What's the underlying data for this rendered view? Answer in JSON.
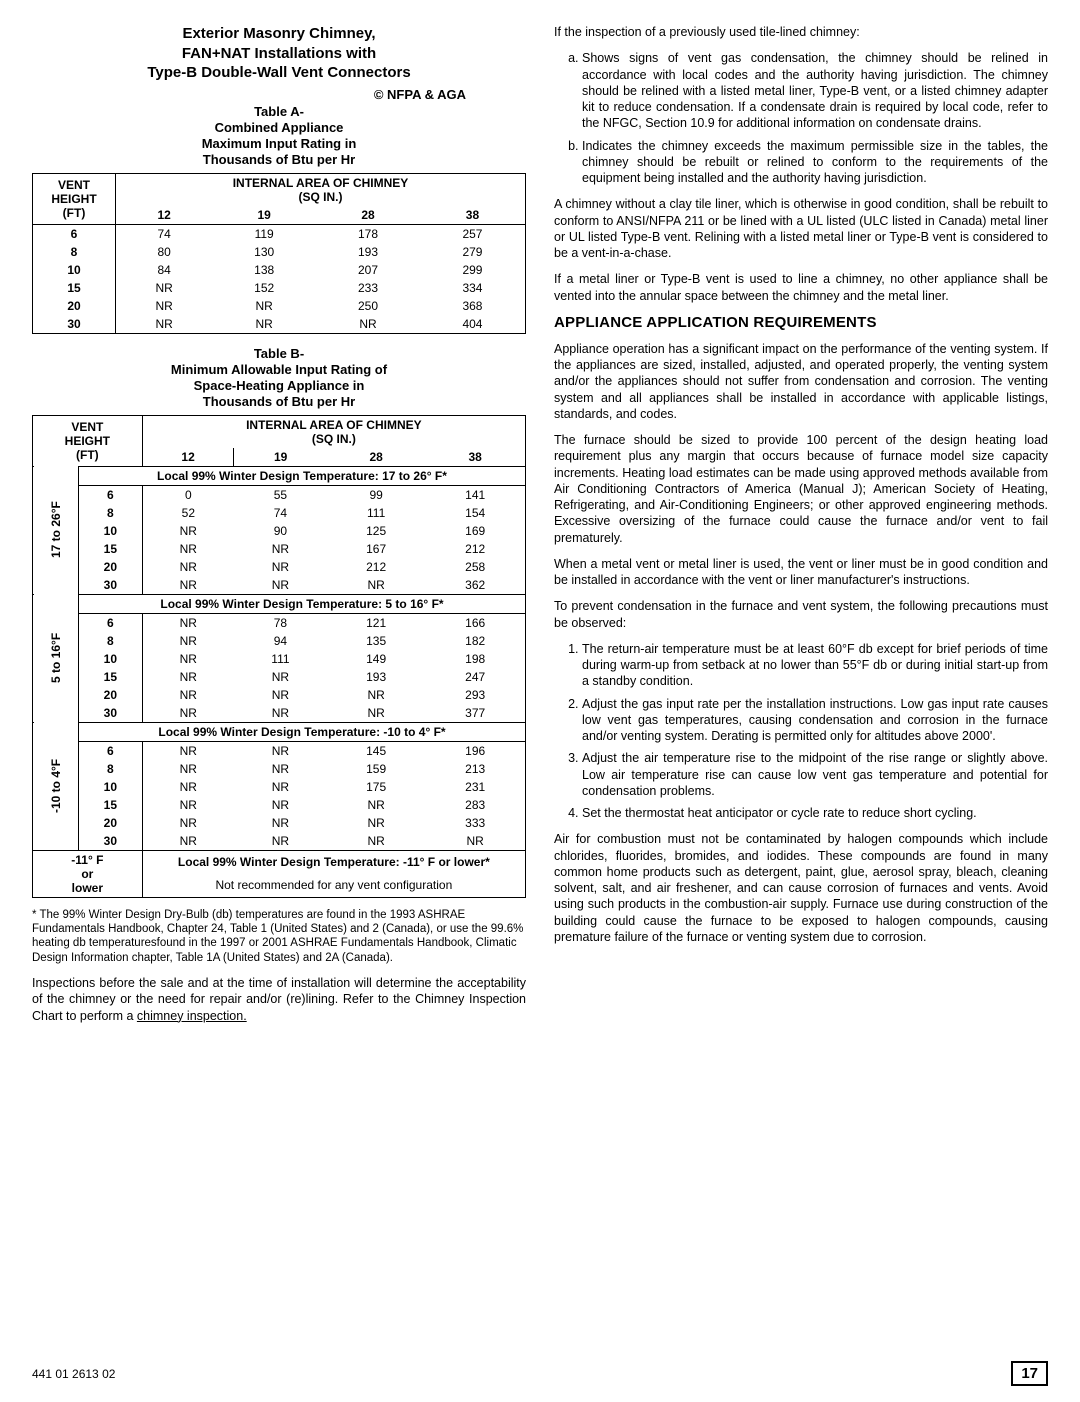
{
  "left": {
    "title_l1": "Exterior Masonry Chimney,",
    "title_l2": "FAN+NAT Installations with",
    "title_l3": "Type-B Double-Wall Vent Connectors",
    "copyright": "© NFPA & AGA",
    "tableA_title_l1": "Table A-",
    "tableA_title_l2": "Combined Appliance",
    "tableA_title_l3": "Maximum Input Rating in",
    "tableA_title_l4": "Thousands of Btu per Hr",
    "hdr_vent": "VENT HEIGHT (FT)",
    "hdr_area": "INTERNAL AREA OF CHIMNEY (SQ IN.)",
    "cols": [
      "12",
      "19",
      "28",
      "38"
    ],
    "tableA_rows": [
      [
        "6",
        "74",
        "119",
        "178",
        "257"
      ],
      [
        "8",
        "80",
        "130",
        "193",
        "279"
      ],
      [
        "10",
        "84",
        "138",
        "207",
        "299"
      ],
      [
        "15",
        "NR",
        "152",
        "233",
        "334"
      ],
      [
        "20",
        "NR",
        "NR",
        "250",
        "368"
      ],
      [
        "30",
        "NR",
        "NR",
        "NR",
        "404"
      ]
    ],
    "tableB_title_l1": "Table B-",
    "tableB_title_l2": "Minimum Allowable Input Rating of",
    "tableB_title_l3": "Space-Heating Appliance in",
    "tableB_title_l4": "Thousands of Btu per Hr",
    "sections": [
      {
        "side": "17 to 26°F",
        "hdr": "Local 99%  Winter Design Temperature: 17 to 26° F*",
        "rows": [
          [
            "6",
            "0",
            "55",
            "99",
            "141"
          ],
          [
            "8",
            "52",
            "74",
            "111",
            "154"
          ],
          [
            "10",
            "NR",
            "90",
            "125",
            "169"
          ],
          [
            "15",
            "NR",
            "NR",
            "167",
            "212"
          ],
          [
            "20",
            "NR",
            "NR",
            "212",
            "258"
          ],
          [
            "30",
            "NR",
            "NR",
            "NR",
            "362"
          ]
        ]
      },
      {
        "side": "5 to 16°F",
        "hdr": "Local 99%  Winter Design Temperature: 5 to 16° F*",
        "rows": [
          [
            "6",
            "NR",
            "78",
            "121",
            "166"
          ],
          [
            "8",
            "NR",
            "94",
            "135",
            "182"
          ],
          [
            "10",
            "NR",
            "111",
            "149",
            "198"
          ],
          [
            "15",
            "NR",
            "NR",
            "193",
            "247"
          ],
          [
            "20",
            "NR",
            "NR",
            "NR",
            "293"
          ],
          [
            "30",
            "NR",
            "NR",
            "NR",
            "377"
          ]
        ]
      },
      {
        "side": "-10 to 4°F",
        "hdr": "Local 99%  Winter Design Temperature: -10 to 4° F*",
        "rows": [
          [
            "6",
            "NR",
            "NR",
            "145",
            "196"
          ],
          [
            "8",
            "NR",
            "NR",
            "159",
            "213"
          ],
          [
            "10",
            "NR",
            "NR",
            "175",
            "231"
          ],
          [
            "15",
            "NR",
            "NR",
            "NR",
            "283"
          ],
          [
            "20",
            "NR",
            "NR",
            "NR",
            "333"
          ],
          [
            "30",
            "NR",
            "NR",
            "NR",
            "NR"
          ]
        ]
      }
    ],
    "bottom_side": "-11° F or lower",
    "bottom_hdr": "Local 99%  Winter Design Temperature: -11° F or lower*",
    "bottom_txt": "Not recommended for any vent configuration",
    "footnote": "* The 99% Winter Design Dry-Bulb (db) temperatures are found in the 1993 ASHRAE Fundamentals Handbook, Chapter 24, Table 1 (United States) and 2 (Canada), or use the 99.6% heating db temperaturesfound in the 1997 or 2001 ASHRAE Fundamentals Handbook, Climatic Design Information chapter, Table 1A (United States) and 2A (Canada).",
    "para1a": "Inspections before the sale and at the time of installation will determine the acceptability of the chimney or the need for repair and/or (re)lining. Refer to the Chimney Inspection Chart to perform a ",
    "para1b": "chimney inspection.",
    "footer_code": "441 01 2613 02"
  },
  "right": {
    "p1": "If the inspection of a previously used tile-lined chimney:",
    "li_a": "Shows signs of vent gas condensation, the chimney should be relined in accordance with local codes and the authority having jurisdiction. The chimney should be relined with a listed metal liner, Type-B vent, or a listed chimney adapter kit to reduce condensation. If a condensate drain is required by local code, refer to the NFGC, Section 10.9 for additional information on condensate drains.",
    "li_b": "Indicates the chimney exceeds the maximum permissible size in the tables, the chimney should be rebuilt or relined to conform to the requirements of the equipment being installed and the authority having jurisdiction.",
    "p2": "A chimney without a clay tile liner, which is otherwise in good condition, shall be rebuilt to conform to ANSI/NFPA 211 or be lined with a UL listed (ULC listed in Canada) metal liner or UL listed Type-B vent. Relining with a listed metal liner or Type-B vent is considered to be a vent-in-a-chase.",
    "p3": "If a metal liner or Type-B vent is used to line a chimney, no other appliance shall be vented into the annular space between the chimney and the metal liner.",
    "h2": "APPLIANCE APPLICATION REQUIREMENTS",
    "p4": "Appliance operation has a significant impact on the performance of the venting system. If the appliances are sized, installed, adjusted, and operated properly, the venting system and/or the appliances should not suffer from condensation and corrosion. The venting system and all appliances shall be installed in accordance with applicable listings, standards, and codes.",
    "p5": "The furnace should be sized to provide 100 percent of the design heating load requirement plus any margin that occurs because of furnace model size capacity increments. Heating load estimates can be made using approved methods available from Air Conditioning Contractors of America (Manual J); American Society of Heating, Refrigerating, and Air-Conditioning Engineers; or other approved engineering methods. Excessive oversizing of the furnace could cause the furnace and/or vent to fail prematurely.",
    "p6": "When a metal vent or metal liner is used, the vent or liner must be in good condition and be installed in accordance with the vent or liner manufacturer's instructions.",
    "p7": "To prevent condensation in the furnace and vent system, the following precautions must be observed:",
    "n1": "The return-air temperature must be at least 60°F db except for brief periods of time during warm-up from setback at no lower than 55°F db or during initial start-up from a standby condition.",
    "n2": "Adjust the gas input rate per the installation instructions. Low gas input rate causes low vent gas temperatures, causing condensation and corrosion in the furnace and/or venting system. Derating is permitted only for altitudes above 2000'.",
    "n3": "Adjust the air temperature rise to the midpoint of the rise range or slightly above. Low air temperature rise can cause low vent gas temperature and potential for condensation problems.",
    "n4": "Set the thermostat heat anticipator or cycle rate to reduce short cycling.",
    "p8": "Air for combustion must not be contaminated by halogen compounds which include chlorides, fluorides, bromides, and iodides. These compounds are found in many common home products such as detergent, paint, glue, aerosol spray, bleach, cleaning solvent, salt, and air freshener, and can cause corrosion of furnaces and vents. Avoid using such products in the combustion-air supply. Furnace use during construction of the building could cause the furnace to be exposed to halogen compounds, causing premature failure of the furnace or venting system due to corrosion.",
    "page_num": "17"
  }
}
